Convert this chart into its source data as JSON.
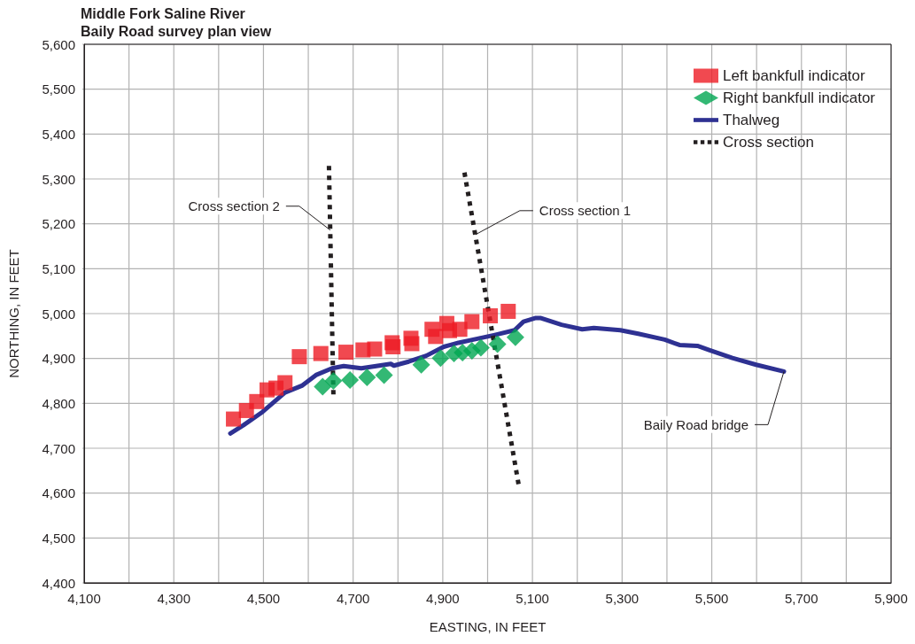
{
  "chart_data": {
    "type": "scatter",
    "title": "Middle Fork Saline River",
    "subtitle": "Baily Road survey plan view",
    "xlabel": "EASTING, IN FEET",
    "ylabel": "NORTHING, IN FEET",
    "xlim": [
      4100,
      5900
    ],
    "ylim": [
      4400,
      5600
    ],
    "xticks": [
      {
        "value": 4100,
        "label": "4,100"
      },
      {
        "value": 4200,
        "label": null
      },
      {
        "value": 4300,
        "label": "4,300"
      },
      {
        "value": 4400,
        "label": null
      },
      {
        "value": 4500,
        "label": "4,500"
      },
      {
        "value": 4600,
        "label": null
      },
      {
        "value": 4700,
        "label": "4,700"
      },
      {
        "value": 4800,
        "label": null
      },
      {
        "value": 4900,
        "label": "4,900"
      },
      {
        "value": 5000,
        "label": null
      },
      {
        "value": 5100,
        "label": "5,100"
      },
      {
        "value": 5200,
        "label": null
      },
      {
        "value": 5300,
        "label": "5,300"
      },
      {
        "value": 5400,
        "label": null
      },
      {
        "value": 5500,
        "label": "5,500"
      },
      {
        "value": 5600,
        "label": null
      },
      {
        "value": 5700,
        "label": "5,700"
      },
      {
        "value": 5800,
        "label": null
      },
      {
        "value": 5900,
        "label": "5,900"
      }
    ],
    "yticks": [
      {
        "value": 4400,
        "label": "4,400"
      },
      {
        "value": 4500,
        "label": "4,500"
      },
      {
        "value": 4600,
        "label": "4,600"
      },
      {
        "value": 4700,
        "label": "4,700"
      },
      {
        "value": 4800,
        "label": "4,800"
      },
      {
        "value": 4900,
        "label": "4,900"
      },
      {
        "value": 5000,
        "label": "5,000"
      },
      {
        "value": 5100,
        "label": "5,100"
      },
      {
        "value": 5200,
        "label": "5,200"
      },
      {
        "value": 5300,
        "label": "5,300"
      },
      {
        "value": 5400,
        "label": "5,400"
      },
      {
        "value": 5500,
        "label": "5,500"
      },
      {
        "value": 5600,
        "label": "5,600"
      }
    ],
    "grid": true,
    "legend": "top right",
    "series": [
      {
        "name": "Left bankfull indicator",
        "marker": "square",
        "color": "#ed1c24",
        "x": [
          4433,
          4462,
          4485,
          4508,
          4528,
          4548,
          4580,
          4628,
          4684,
          4722,
          4748,
          4787,
          4789,
          4829,
          4831,
          4876,
          4884,
          4909,
          4915,
          4938,
          4965,
          5006,
          5046
        ],
        "values": [
          4765,
          4784,
          4804,
          4830,
          4834,
          4846,
          4904,
          4911,
          4914,
          4919,
          4921,
          4935,
          4926,
          4945,
          4933,
          4965,
          4949,
          4978,
          4962,
          4965,
          4982,
          4995,
          5005
        ]
      },
      {
        "name": "Right bankfull indicator",
        "marker": "diamond",
        "color": "#00a651",
        "x": [
          4632,
          4656,
          4693,
          4731,
          4769,
          4852,
          4895,
          4925,
          4944,
          4965,
          4985,
          5022,
          5062
        ],
        "values": [
          4837,
          4850,
          4852,
          4858,
          4863,
          4886,
          4901,
          4911,
          4913,
          4917,
          4924,
          4932,
          4947
        ]
      },
      {
        "name": "Thalweg",
        "type": "line",
        "marker": "none",
        "line_style": "solid",
        "color": "#2e3192",
        "x": [
          4426,
          4455,
          4498,
          4548,
          4587,
          4617,
          4653,
          4679,
          4718,
          4758,
          4784,
          4791,
          4824,
          4863,
          4902,
          4935,
          4968,
          5014,
          5060,
          5080,
          5106,
          5119,
          5165,
          5211,
          5237,
          5296,
          5336,
          5395,
          5428,
          5468,
          5494,
          5546,
          5599,
          5661
        ],
        "values": [
          4733,
          4751,
          4781,
          4824,
          4840,
          4863,
          4878,
          4883,
          4878,
          4884,
          4888,
          4884,
          4893,
          4906,
          4926,
          4935,
          4942,
          4952,
          4963,
          4982,
          4990,
          4990,
          4975,
          4965,
          4968,
          4963,
          4955,
          4942,
          4930,
          4928,
          4919,
          4901,
          4886,
          4871
        ]
      },
      {
        "name": "Cross section",
        "type": "line",
        "marker": "none",
        "line_style": "dotted",
        "color": "#231f20",
        "x": [
          4656,
          4646
        ],
        "values": [
          4820,
          5334
        ]
      },
      {
        "type": "line",
        "marker": "none",
        "line_style": "dotted",
        "color": "#231f20",
        "x": [
          5069,
          4947
        ],
        "values": [
          4620,
          5322
        ]
      }
    ],
    "annotations": [
      {
        "text": "Cross section 2",
        "x": 4649,
        "y": 5186
      },
      {
        "text": "Cross section 1",
        "x": 4973,
        "y": 5176
      },
      {
        "text": "Baily Road bridge",
        "x": 5661,
        "y": 4871
      }
    ]
  }
}
